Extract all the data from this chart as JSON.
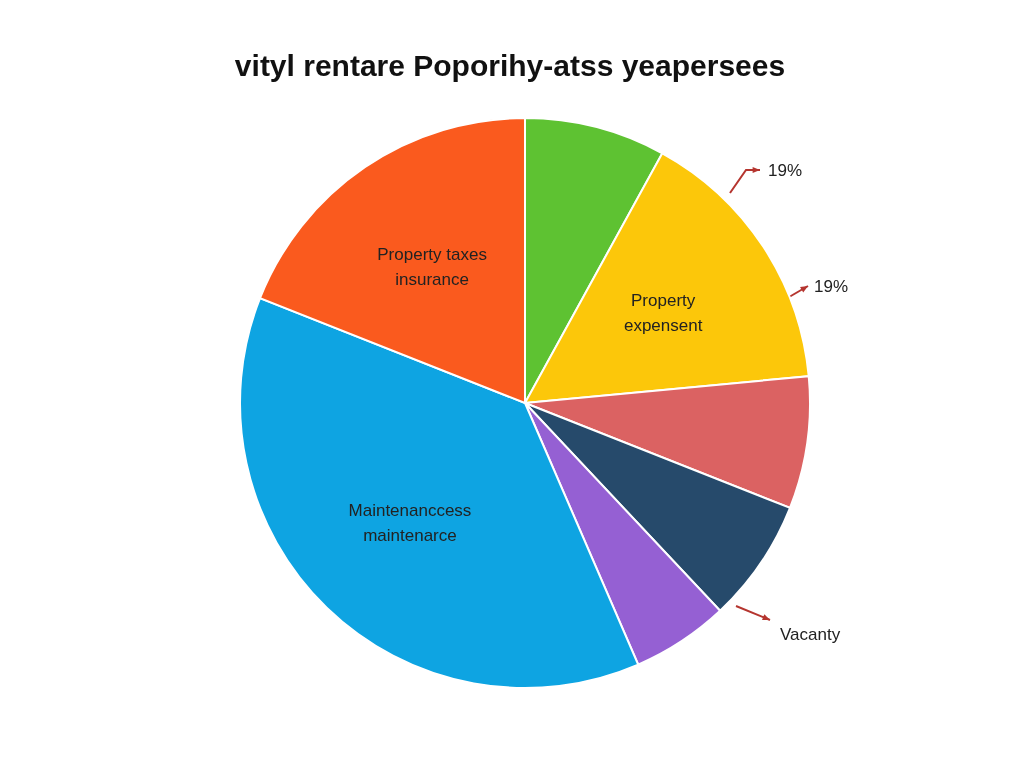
{
  "chart_data": {
    "type": "pie",
    "title": "vityl rentare Poporihy-atss yeapersees",
    "categories": [
      null,
      "Property\nexpensent",
      null,
      null,
      null,
      "Maintenanccess\nmaintenarce",
      "Property taxes\ninsurance"
    ],
    "values": [
      8,
      15.5,
      7.5,
      7,
      5.5,
      37.5,
      19
    ],
    "colors": [
      "#5ec232",
      "#fcc70a",
      "#db6262",
      "#264a6b",
      "#9560d3",
      "#0ea4e2",
      "#fa5a1e"
    ],
    "annotations": [
      "19%",
      "19%",
      "Vacanty"
    ]
  }
}
